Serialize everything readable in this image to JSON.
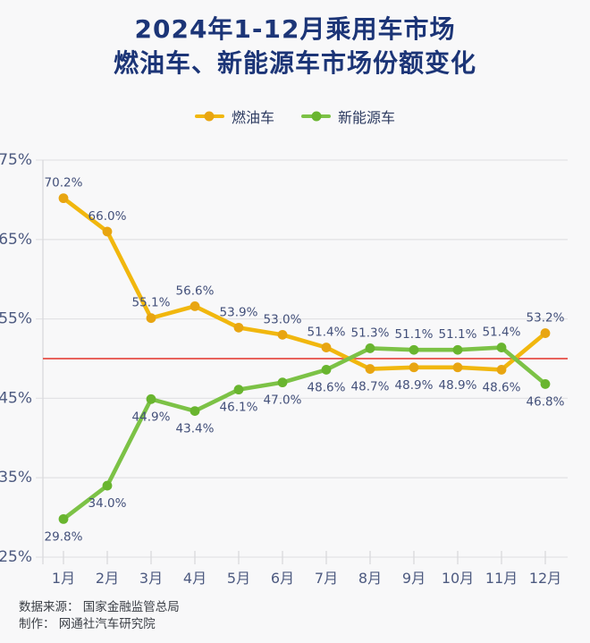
{
  "title": {
    "line1": "2024年1-12月乘用车市场",
    "line2": "燃油车、新能源车市场份额变化"
  },
  "legend": {
    "items": [
      {
        "label": "燃油车",
        "line_color": "#F1B70E",
        "dot_color": "#E8A511"
      },
      {
        "label": "新能源车",
        "line_color": "#7CC246",
        "dot_color": "#69B52F"
      }
    ]
  },
  "footer": {
    "source": "数据来源： 国家金融监管总局",
    "producer": "制作： 网通社汽车研究院"
  },
  "chart_data": {
    "type": "line",
    "title": "2024年1-12月乘用车市场 燃油车、新能源车市场份额变化",
    "categories": [
      "1月",
      "2月",
      "3月",
      "4月",
      "5月",
      "6月",
      "7月",
      "8月",
      "9月",
      "10月",
      "11月",
      "12月"
    ],
    "series": [
      {
        "name": "燃油车",
        "color": "#F1B70E",
        "dot_color": "#E8A511",
        "values": [
          70.2,
          66.0,
          55.1,
          56.6,
          53.9,
          53.0,
          51.4,
          48.7,
          48.9,
          48.9,
          48.6,
          53.2
        ]
      },
      {
        "name": "新能源车",
        "color": "#7CC246",
        "dot_color": "#69B52F",
        "values": [
          29.8,
          34.0,
          44.9,
          43.4,
          46.1,
          47.0,
          48.6,
          51.3,
          51.1,
          51.1,
          51.4,
          46.8
        ]
      }
    ],
    "ylim": [
      25,
      75
    ],
    "ytick_step": 10,
    "ytick_suffix": "%",
    "value_label_decimals": 1,
    "value_label_suffix": "%",
    "reference_line": {
      "value": 50,
      "color": "#E8625C"
    },
    "grid": true,
    "legend_position": "top",
    "label_placement_rule": "label above point when value > reference 50, below otherwise"
  }
}
